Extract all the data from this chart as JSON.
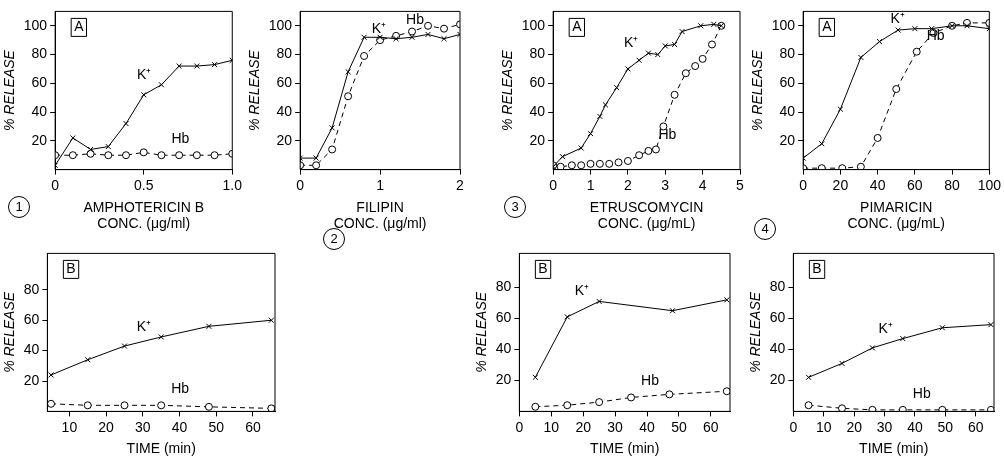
{
  "chart_data": [
    {
      "type": "line",
      "xlabel": "AMPHOTERICIN B\nCONC. (μg/ml)",
      "ylabel": "% RELEASE",
      "xlim": [
        0,
        1
      ],
      "ylim": [
        0,
        110
      ],
      "xticks": [
        0,
        0.5,
        {
          "value": 1,
          "label": "1.0"
        }
      ],
      "yticks": [
        20,
        40,
        60,
        80,
        100
      ],
      "annotations": [
        "A",
        "1"
      ],
      "series": [
        {
          "name": "K⁺",
          "color": "#000000",
          "marker": "cross",
          "line_style": "solid",
          "x": [
            0,
            0.1,
            0.2,
            0.3,
            0.4,
            0.5,
            0.6,
            0.7,
            0.8,
            0.9,
            1.0
          ],
          "values": [
            3,
            22,
            14,
            16,
            32,
            52,
            59,
            72,
            72,
            73,
            76
          ]
        },
        {
          "name": "Hb",
          "color": "#000000",
          "marker": "circle",
          "line_style": "dashed",
          "x": [
            0,
            0.1,
            0.2,
            0.3,
            0.4,
            0.5,
            0.6,
            0.7,
            0.8,
            0.9,
            1.0
          ],
          "values": [
            10,
            10,
            11,
            10,
            10,
            12,
            10,
            10,
            10,
            10,
            11
          ]
        }
      ]
    },
    {
      "type": "line",
      "xlabel": "FILIPIN\nCONC. (μg/ml)",
      "ylabel": "% RELEASE",
      "xlim": [
        0,
        2
      ],
      "ylim": [
        0,
        110
      ],
      "xticks": [
        0,
        1,
        2
      ],
      "yticks": [
        20,
        40,
        60,
        80,
        100
      ],
      "annotations": [
        "2"
      ],
      "series": [
        {
          "name": "K⁺",
          "color": "#000000",
          "marker": "cross",
          "line_style": "solid",
          "x": [
            0,
            0.2,
            0.4,
            0.6,
            0.8,
            1.0,
            1.2,
            1.4,
            1.6,
            1.8,
            2.0
          ],
          "values": [
            8,
            8,
            29,
            68,
            92,
            92,
            91,
            92,
            94,
            91,
            94
          ]
        },
        {
          "name": "Hb",
          "color": "#000000",
          "marker": "circle",
          "line_style": "dashed",
          "x": [
            0,
            0.2,
            0.4,
            0.6,
            0.8,
            1.0,
            1.2,
            1.4,
            1.6,
            1.8,
            2.0
          ],
          "values": [
            3,
            3,
            14,
            51,
            79,
            90,
            93,
            96,
            100,
            98,
            101
          ]
        }
      ]
    },
    {
      "type": "line",
      "xlabel": "ETRUSCOMYCIN\nCONC. (μg/mL)",
      "ylabel": "% RELEASE",
      "xlim": [
        0,
        5
      ],
      "ylim": [
        0,
        110
      ],
      "xticks": [
        0,
        1,
        2,
        3,
        4,
        5
      ],
      "yticks": [
        20,
        40,
        60,
        80,
        100
      ],
      "annotations": [
        "A",
        "3"
      ],
      "series": [
        {
          "name": "K⁺",
          "color": "#000000",
          "marker": "cross",
          "line_style": "solid",
          "x": [
            0,
            0.25,
            0.75,
            1,
            1.25,
            1.4,
            1.7,
            2,
            2.3,
            2.55,
            2.8,
            3,
            3.25,
            3.45,
            3.95,
            4.3,
            4.5
          ],
          "values": [
            2,
            9,
            15,
            25,
            37,
            45,
            57,
            70,
            76,
            81,
            80,
            86,
            87,
            96,
            100,
            101,
            100
          ]
        },
        {
          "name": "Hb",
          "color": "#000000",
          "marker": "circle",
          "line_style": "dashed",
          "x": [
            0,
            0.2,
            0.5,
            0.75,
            1,
            1.25,
            1.5,
            1.75,
            2,
            2.3,
            2.55,
            2.75,
            2.95,
            3.25,
            3.55,
            3.8,
            4,
            4.25,
            4.5
          ],
          "values": [
            3,
            2,
            3,
            3,
            4,
            4,
            4,
            5,
            6,
            10,
            13,
            14,
            30,
            52,
            67,
            72,
            77,
            87,
            100
          ]
        }
      ]
    },
    {
      "type": "line",
      "xlabel": "PIMARICIN\nCONC. (μg/mL)",
      "ylabel": "% RELEASE",
      "xlim": [
        0,
        100
      ],
      "ylim": [
        0,
        110
      ],
      "xticks": [
        0,
        20,
        40,
        60,
        80,
        100
      ],
      "yticks": [
        20,
        40,
        60,
        80,
        100
      ],
      "annotations": [
        "A",
        "4"
      ],
      "series": [
        {
          "name": "K⁺",
          "color": "#000000",
          "marker": "cross",
          "line_style": "solid",
          "x": [
            0,
            10,
            20,
            31,
            41,
            51,
            60,
            69,
            80,
            88,
            100
          ],
          "values": [
            8,
            18,
            42,
            78,
            89,
            97,
            98,
            98,
            100,
            100,
            98
          ]
        },
        {
          "name": "Hb",
          "color": "#000000",
          "marker": "circle",
          "line_style": "dashed",
          "x": [
            0,
            10,
            21,
            31,
            40,
            50,
            61,
            70,
            80,
            88,
            100
          ],
          "values": [
            1,
            1,
            1,
            2,
            22,
            56,
            82,
            95,
            100,
            102,
            102
          ]
        }
      ]
    },
    {
      "type": "line",
      "xlabel": "TIME (min)",
      "ylabel": "% RELEASE",
      "xlim": [
        4,
        66
      ],
      "ylim": [
        0,
        104
      ],
      "xticks": [
        10,
        20,
        30,
        40,
        50,
        60
      ],
      "yticks": [
        20,
        40,
        60,
        80
      ],
      "annotations": [
        "B"
      ],
      "series": [
        {
          "name": "K⁺",
          "color": "#000000",
          "marker": "cross",
          "line_style": "solid",
          "x": [
            5,
            15,
            25,
            35,
            48,
            65
          ],
          "values": [
            24,
            34,
            43,
            49,
            56,
            60
          ]
        },
        {
          "name": "Hb",
          "color": "#000000",
          "marker": "circle",
          "line_style": "dashed",
          "x": [
            5,
            15,
            25,
            35,
            48,
            65
          ],
          "values": [
            5,
            4,
            4,
            4,
            3,
            2
          ]
        }
      ]
    },
    {
      "type": "line",
      "xlabel": "TIME (min)",
      "ylabel": "% RELEASE",
      "xlim": [
        0,
        66
      ],
      "ylim": [
        0,
        102
      ],
      "xticks": [
        0,
        10,
        20,
        30,
        40,
        50,
        60
      ],
      "yticks": [
        20,
        40,
        60,
        80
      ],
      "annotations": [
        "B"
      ],
      "series": [
        {
          "name": "K⁺",
          "color": "#000000",
          "marker": "cross",
          "line_style": "solid",
          "x": [
            5,
            15,
            25,
            48,
            65
          ],
          "values": [
            22,
            61,
            71,
            65,
            72
          ]
        },
        {
          "name": "Hb",
          "color": "#000000",
          "marker": "circle",
          "line_style": "dashed",
          "x": [
            5,
            15,
            25,
            35,
            47,
            65
          ],
          "values": [
            3,
            4,
            6,
            9,
            11,
            13
          ]
        }
      ]
    },
    {
      "type": "line",
      "xlabel": "TIME (min)",
      "ylabel": "% RELEASE",
      "xlim": [
        0,
        66
      ],
      "ylim": [
        0,
        102
      ],
      "xticks": [
        0,
        10,
        20,
        30,
        40,
        50,
        60
      ],
      "yticks": [
        20,
        40,
        60,
        80
      ],
      "annotations": [
        "B"
      ],
      "series": [
        {
          "name": "K⁺",
          "color": "#000000",
          "marker": "cross",
          "line_style": "solid",
          "x": [
            5,
            16,
            26,
            36,
            49,
            65
          ],
          "values": [
            22,
            31,
            41,
            47,
            54,
            56
          ]
        },
        {
          "name": "Hb",
          "color": "#000000",
          "marker": "circle",
          "line_style": "dashed",
          "x": [
            5,
            16,
            26,
            36,
            49,
            65
          ],
          "values": [
            4,
            2,
            1,
            1,
            1,
            1
          ]
        }
      ]
    }
  ]
}
